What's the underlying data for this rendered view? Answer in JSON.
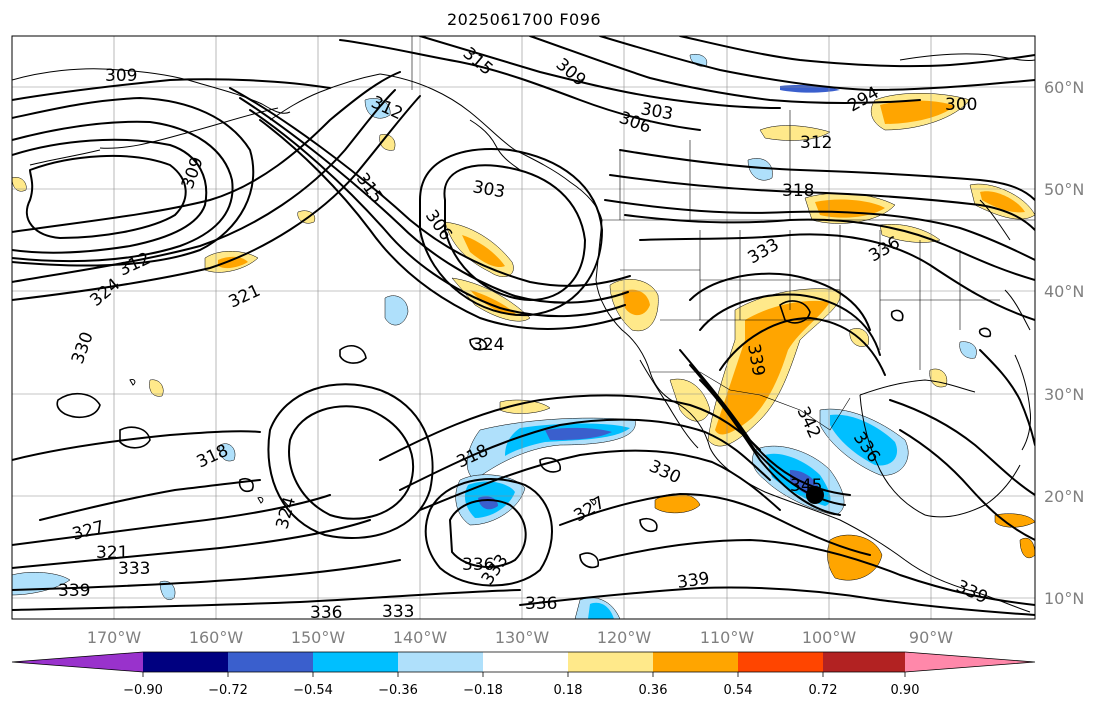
{
  "title": "2025061700 F096",
  "latitude_labels": [
    "60°N",
    "50°N",
    "40°N",
    "30°N",
    "20°N",
    "10°N"
  ],
  "longitude_labels": [
    "170°W",
    "160°W",
    "150°W",
    "140°W",
    "130°W",
    "120°W",
    "110°W",
    "100°W",
    "90°W"
  ],
  "contour_labels": [
    "309",
    "315",
    "309",
    "303",
    "306",
    "312",
    "309",
    "303",
    "315",
    "306",
    "312",
    "321",
    "324",
    "330",
    "324",
    "318",
    "318",
    "324",
    "327",
    "321",
    "333",
    "339",
    "336",
    "333",
    "336",
    "333",
    "336",
    "339",
    "330",
    "327",
    "342",
    "339",
    "336",
    "345",
    "333",
    "336",
    "294",
    "300",
    "312",
    "318",
    "339"
  ],
  "colorbar": {
    "tick_labels": [
      "−0.90",
      "−0.72",
      "−0.54",
      "−0.36",
      "−0.18",
      "0.18",
      "0.36",
      "0.54",
      "0.72",
      "0.90"
    ],
    "colors": [
      "#9932cc",
      "#000080",
      "#3a5fcd",
      "#00bfff",
      "#afe0fb",
      "#ffffff",
      "#ffe98a",
      "#ffa500",
      "#ff4500",
      "#b22222",
      "#ff88aa"
    ]
  },
  "shading_colors": {
    "light_yellow": "#ffe98a",
    "orange": "#ffa500",
    "light_blue": "#afe0fb",
    "deep_sky_blue": "#00bfff",
    "royal_blue": "#3a5fcd",
    "navy": "#000080"
  }
}
